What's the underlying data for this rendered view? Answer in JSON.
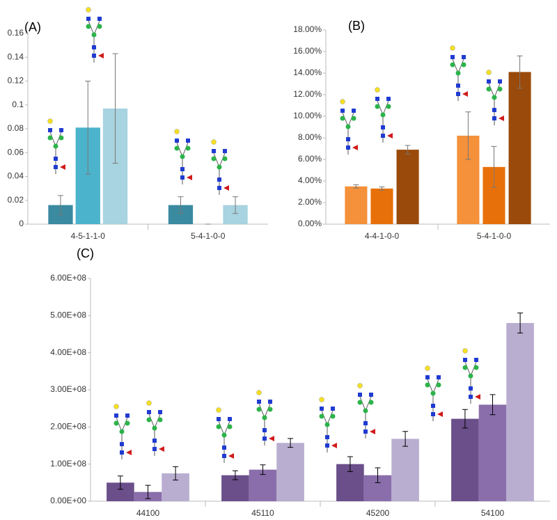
{
  "chart_data": [
    {
      "type": "bar",
      "label": "(A)",
      "categories": [
        "4-5-1-1-0",
        "5-4-1-0-0"
      ],
      "series": [
        {
          "color": "#3a8aa0",
          "values": [
            0.016,
            0.016
          ],
          "errors": [
            0.008,
            0.007
          ]
        },
        {
          "color": "#4cb3cc",
          "values": [
            0.081,
            0
          ],
          "errors": [
            0.039,
            0
          ]
        },
        {
          "color": "#a8d3e0",
          "values": [
            0.097,
            0.016
          ],
          "errors": [
            0.046,
            0.007
          ]
        }
      ],
      "ylim": [
        0,
        0.16
      ],
      "yticks": [
        0,
        0.02,
        0.04,
        0.06,
        0.08,
        0.1,
        0.12,
        0.14,
        0.16
      ]
    },
    {
      "type": "bar",
      "label": "(B)",
      "categories": [
        "4-4-1-0-0",
        "5-4-1-0-0"
      ],
      "series": [
        {
          "color": "#f5913a",
          "values": [
            3.5,
            8.2
          ],
          "errors": [
            0.15,
            2.2
          ]
        },
        {
          "color": "#e8700a",
          "values": [
            3.3,
            5.3
          ],
          "errors": [
            0.15,
            1.9
          ]
        },
        {
          "color": "#9a4a0a",
          "values": [
            6.9,
            14.1
          ],
          "errors": [
            0.4,
            1.5
          ]
        }
      ],
      "ylim": [
        0,
        18
      ],
      "yticks": [
        {
          "value": 0,
          "label": "0.00%"
        },
        {
          "value": 2,
          "label": "2.00%"
        },
        {
          "value": 4,
          "label": "4.00%"
        },
        {
          "value": 6,
          "label": "6.00%"
        },
        {
          "value": 8,
          "label": "8.00%"
        },
        {
          "value": 10,
          "label": "10.00%"
        },
        {
          "value": 12,
          "label": "12.00%"
        },
        {
          "value": 14,
          "label": "14.00%"
        },
        {
          "value": 16,
          "label": "16.00%"
        },
        {
          "value": 18,
          "label": "18.00%"
        }
      ]
    },
    {
      "type": "bar",
      "label": "(C)",
      "categories": [
        "44100",
        "45110",
        "45200",
        "54100"
      ],
      "series": [
        {
          "color": "#6a4f8a",
          "values": [
            50000000,
            70000000,
            100000000,
            222000000
          ],
          "errors": [
            18000000,
            12000000,
            20000000,
            25000000
          ]
        },
        {
          "color": "#8a6eab",
          "values": [
            25000000,
            85000000,
            70000000,
            260000000
          ],
          "errors": [
            18000000,
            13000000,
            20000000,
            27000000
          ]
        },
        {
          "color": "#b9aed0",
          "values": [
            75000000,
            157000000,
            168000000,
            480000000
          ],
          "errors": [
            18000000,
            12000000,
            20000000,
            27000000
          ]
        }
      ],
      "ylim": [
        0,
        600000000
      ],
      "yticks": [
        {
          "value": 0,
          "label": "0.00E+00"
        },
        {
          "value": 100000000,
          "label": "1.00E+08"
        },
        {
          "value": 200000000,
          "label": "2.00E+08"
        },
        {
          "value": 300000000,
          "label": "3.00E+08"
        },
        {
          "value": 400000000,
          "label": "4.00E+08"
        },
        {
          "value": 500000000,
          "label": "5.00E+08"
        },
        {
          "value": 600000000,
          "label": "6.00E+08"
        }
      ]
    }
  ]
}
